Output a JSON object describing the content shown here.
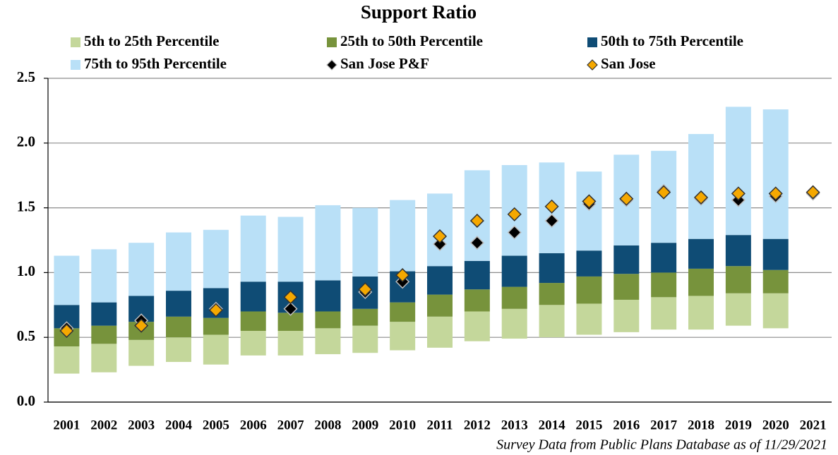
{
  "chart_data": {
    "type": "bar",
    "title": "Support Ratio",
    "footnote": "Survey Data from Public Plans Database as of 11/29/2021",
    "categories": [
      "2001",
      "2002",
      "2003",
      "2004",
      "2005",
      "2006",
      "2007",
      "2008",
      "2009",
      "2010",
      "2011",
      "2012",
      "2013",
      "2014",
      "2015",
      "2016",
      "2017",
      "2018",
      "2019",
      "2020",
      "2021"
    ],
    "ylim": [
      0,
      2.5
    ],
    "yticks": [
      {
        "value": 0,
        "label": "0.0"
      },
      0.5,
      {
        "value": 1,
        "label": "1.0"
      },
      1.5,
      {
        "value": 2,
        "label": "2.0"
      },
      2.5
    ],
    "grid": true,
    "series": [
      {
        "name": "5th to 25th Percentile",
        "type": "range",
        "color": "#c4d79b",
        "values": [
          [
            0.22,
            0.43
          ],
          [
            0.23,
            0.45
          ],
          [
            0.28,
            0.48
          ],
          [
            0.31,
            0.5
          ],
          [
            0.29,
            0.52
          ],
          [
            0.36,
            0.55
          ],
          [
            0.36,
            0.55
          ],
          [
            0.37,
            0.57
          ],
          [
            0.38,
            0.59
          ],
          [
            0.4,
            0.62
          ],
          [
            0.42,
            0.66
          ],
          [
            0.47,
            0.7
          ],
          [
            0.49,
            0.72
          ],
          [
            0.5,
            0.75
          ],
          [
            0.52,
            0.76
          ],
          [
            0.54,
            0.79
          ],
          [
            0.56,
            0.81
          ],
          [
            0.56,
            0.82
          ],
          [
            0.59,
            0.84
          ],
          [
            0.57,
            0.84
          ],
          null
        ]
      },
      {
        "name": "25th to 50th Percentile",
        "type": "range",
        "color": "#77933c",
        "values": [
          [
            0.43,
            0.57
          ],
          [
            0.45,
            0.59
          ],
          [
            0.48,
            0.62
          ],
          [
            0.5,
            0.66
          ],
          [
            0.52,
            0.65
          ],
          [
            0.55,
            0.7
          ],
          [
            0.55,
            0.69
          ],
          [
            0.57,
            0.7
          ],
          [
            0.59,
            0.72
          ],
          [
            0.62,
            0.77
          ],
          [
            0.66,
            0.83
          ],
          [
            0.7,
            0.87
          ],
          [
            0.72,
            0.89
          ],
          [
            0.75,
            0.92
          ],
          [
            0.76,
            0.97
          ],
          [
            0.79,
            0.99
          ],
          [
            0.81,
            1.0
          ],
          [
            0.82,
            1.03
          ],
          [
            0.84,
            1.05
          ],
          [
            0.84,
            1.02
          ],
          null
        ]
      },
      {
        "name": "50th to 75th Percentile",
        "type": "range",
        "color": "#0f4c75",
        "values": [
          [
            0.57,
            0.75
          ],
          [
            0.59,
            0.77
          ],
          [
            0.62,
            0.82
          ],
          [
            0.66,
            0.86
          ],
          [
            0.65,
            0.88
          ],
          [
            0.7,
            0.93
          ],
          [
            0.69,
            0.93
          ],
          [
            0.7,
            0.94
          ],
          [
            0.72,
            0.97
          ],
          [
            0.77,
            1.01
          ],
          [
            0.83,
            1.05
          ],
          [
            0.87,
            1.09
          ],
          [
            0.89,
            1.13
          ],
          [
            0.92,
            1.15
          ],
          [
            0.97,
            1.17
          ],
          [
            0.99,
            1.21
          ],
          [
            1.0,
            1.23
          ],
          [
            1.03,
            1.26
          ],
          [
            1.05,
            1.29
          ],
          [
            1.02,
            1.26
          ],
          null
        ]
      },
      {
        "name": "75th to 95th Percentile",
        "type": "range",
        "color": "#b9e0f7",
        "values": [
          [
            0.75,
            1.13
          ],
          [
            0.77,
            1.18
          ],
          [
            0.82,
            1.23
          ],
          [
            0.86,
            1.31
          ],
          [
            0.88,
            1.33
          ],
          [
            0.93,
            1.44
          ],
          [
            0.93,
            1.43
          ],
          [
            0.94,
            1.52
          ],
          [
            0.97,
            1.5
          ],
          [
            1.01,
            1.56
          ],
          [
            1.05,
            1.61
          ],
          [
            1.09,
            1.79
          ],
          [
            1.13,
            1.83
          ],
          [
            1.15,
            1.85
          ],
          [
            1.17,
            1.78
          ],
          [
            1.21,
            1.91
          ],
          [
            1.23,
            1.94
          ],
          [
            1.26,
            2.07
          ],
          [
            1.29,
            2.28
          ],
          [
            1.26,
            2.26
          ],
          null
        ]
      },
      {
        "name": "San Jose P&F",
        "type": "scatter",
        "color": "#000000",
        "values": [
          0.57,
          null,
          0.63,
          null,
          0.72,
          null,
          0.72,
          null,
          0.85,
          0.93,
          1.22,
          1.23,
          1.31,
          1.4,
          1.53,
          1.56,
          1.63,
          1.57,
          1.56,
          1.59,
          1.61
        ]
      },
      {
        "name": "San Jose",
        "type": "scatter",
        "color": "#f5a800",
        "values": [
          0.55,
          null,
          0.59,
          null,
          0.71,
          null,
          0.81,
          null,
          0.87,
          0.98,
          1.28,
          1.4,
          1.45,
          1.51,
          1.55,
          1.57,
          1.62,
          1.58,
          1.61,
          1.61,
          1.62
        ]
      }
    ]
  }
}
